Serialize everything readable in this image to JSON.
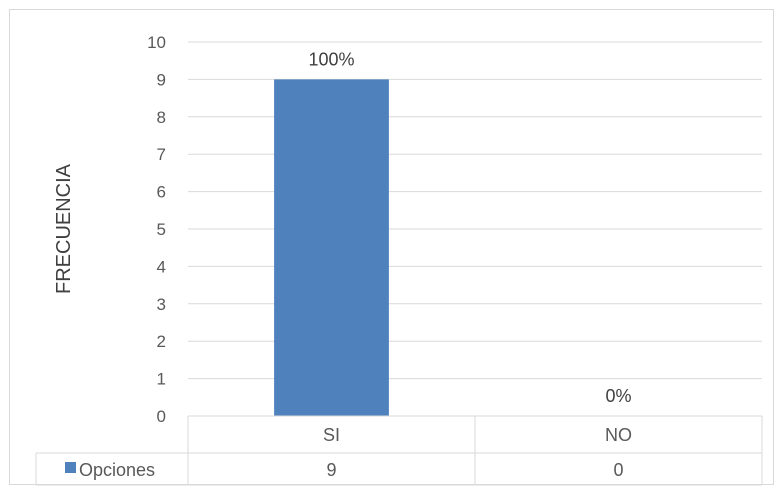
{
  "chart_data": {
    "type": "bar",
    "categories": [
      "SI",
      "NO"
    ],
    "series": [
      {
        "name": "Opciones",
        "values": [
          9,
          0
        ],
        "color": "#4f81bd"
      }
    ],
    "data_labels": [
      "100%",
      "0%"
    ],
    "ylabel": "FRECUENCIA",
    "ylim": [
      0,
      10
    ],
    "yticks": [
      0,
      1,
      2,
      3,
      4,
      5,
      6,
      7,
      8,
      9,
      10
    ],
    "grid": true,
    "data_table": true,
    "data_table_values": [
      "9",
      "0"
    ]
  }
}
